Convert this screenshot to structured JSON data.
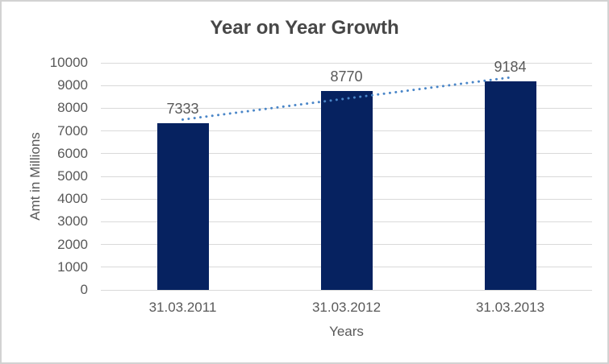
{
  "window": {
    "background": "#ffffff",
    "border_color": "#d2d2d2"
  },
  "chart_data": {
    "type": "bar",
    "title": "Year on Year Growth",
    "categories": [
      "31.03.2011",
      "31.03.2012",
      "31.03.2013"
    ],
    "values": [
      7333,
      8770,
      9184
    ],
    "data_labels": [
      "7333",
      "8770",
      "9184"
    ],
    "xlabel": "Years",
    "ylabel": "Amt in Millions",
    "ylim": [
      0,
      10000
    ],
    "ytick_step": 1000,
    "yticks": [
      0,
      1000,
      2000,
      3000,
      4000,
      5000,
      6000,
      7000,
      8000,
      9000,
      10000
    ],
    "grid": true,
    "legend_position": "none",
    "trendline": {
      "type": "linear",
      "style": "dotted",
      "start_value": 7500,
      "end_value": 9355
    },
    "colors": {
      "bar": "#062260",
      "trendline": "#4a86c8",
      "gridline": "#d9d9d9",
      "tick_text": "#595959",
      "title_text": "#474747"
    }
  }
}
